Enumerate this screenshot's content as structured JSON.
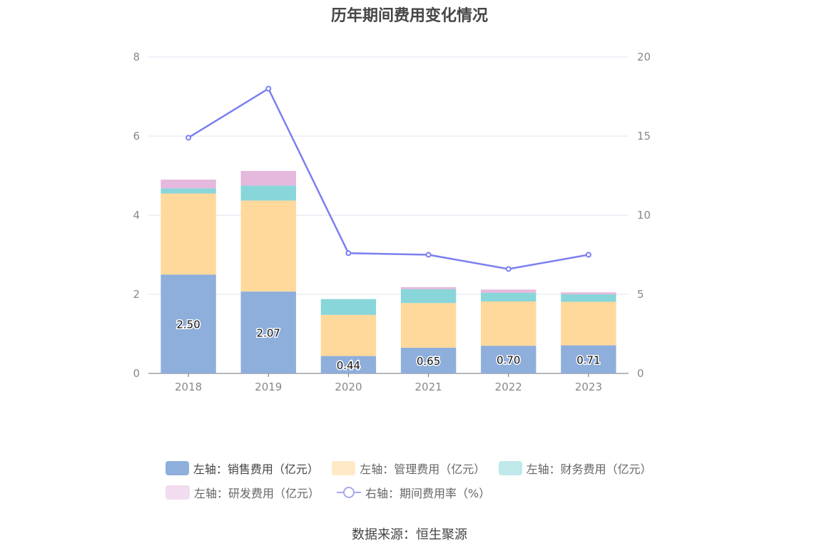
{
  "title": "历年期间费用变化情况",
  "source": "数据来源：恒生聚源",
  "chart_data": {
    "type": "bar",
    "stacked": true,
    "categories": [
      "2018",
      "2019",
      "2020",
      "2021",
      "2022",
      "2023"
    ],
    "series": [
      {
        "name": "左轴：销售费用（亿元）",
        "axis": "left",
        "color": "#8eaedb",
        "values": [
          2.5,
          2.07,
          0.44,
          0.65,
          0.7,
          0.71
        ],
        "show_labels": true
      },
      {
        "name": "左轴：管理费用（亿元）",
        "axis": "left",
        "color": "#ffd99c",
        "values": [
          2.05,
          2.3,
          1.04,
          1.13,
          1.12,
          1.1
        ]
      },
      {
        "name": "左轴：财务费用（亿元）",
        "axis": "left",
        "color": "#88d6d9",
        "values": [
          0.13,
          0.38,
          0.4,
          0.35,
          0.22,
          0.19
        ]
      },
      {
        "name": "左轴：研发费用（亿元）",
        "axis": "left",
        "color": "#e5b8dd",
        "values": [
          0.22,
          0.37,
          0.0,
          0.05,
          0.08,
          0.05
        ]
      }
    ],
    "line_series": {
      "name": "右轴：期间费用率（%）",
      "axis": "right",
      "type": "line",
      "color": "#7b7ff0",
      "values": [
        14.9,
        18.0,
        7.6,
        7.5,
        6.6,
        7.5
      ]
    },
    "left_axis": {
      "min": 0,
      "max": 8,
      "ticks": [
        "0",
        "2",
        "4",
        "6",
        "8"
      ]
    },
    "right_axis": {
      "min": 0,
      "max": 20,
      "ticks": [
        "0",
        "5",
        "10",
        "15",
        "20"
      ]
    },
    "grid": true,
    "legend_position": "bottom"
  }
}
